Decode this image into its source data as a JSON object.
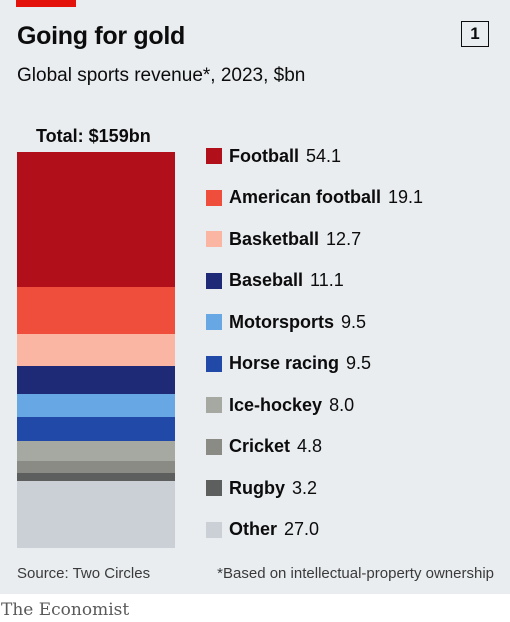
{
  "header": {
    "title": "Going for gold",
    "subtitle": "Global sports revenue*, 2023, $bn",
    "badge": "1"
  },
  "footer": {
    "source": "Source: Two Circles",
    "footnote": "*Based on intellectual-property ownership",
    "brand": "The Economist"
  },
  "colors": {
    "accent": "#e3120b",
    "panel": "#e9edf0"
  },
  "chart_data": {
    "type": "bar",
    "orientation": "stacked-vertical",
    "title": "Going for gold",
    "subtitle": "Global sports revenue*, 2023, $bn",
    "total_label": "Total: $159bn",
    "total": 159,
    "legend_position": "right",
    "grid": false,
    "series": [
      {
        "name": "Football",
        "value": 54.1,
        "label": "54.1",
        "color": "#b1101a"
      },
      {
        "name": "American football",
        "value": 19.1,
        "label": "19.1",
        "color": "#f04e3d"
      },
      {
        "name": "Basketball",
        "value": 12.7,
        "label": "12.7",
        "color": "#fbb5a3"
      },
      {
        "name": "Baseball",
        "value": 11.1,
        "label": "11.1",
        "color": "#1f2a77"
      },
      {
        "name": "Motorsports",
        "value": 9.5,
        "label": "9.5",
        "color": "#67a7e3"
      },
      {
        "name": "Horse racing",
        "value": 9.5,
        "label": "9.5",
        "color": "#2049a8"
      },
      {
        "name": "Ice-hockey",
        "value": 8.0,
        "label": "8.0",
        "color": "#a6a9a1"
      },
      {
        "name": "Cricket",
        "value": 4.8,
        "label": "4.8",
        "color": "#8a8b85"
      },
      {
        "name": "Rugby",
        "value": 3.2,
        "label": "3.2",
        "color": "#5d5f5e"
      },
      {
        "name": "Other",
        "value": 27.0,
        "label": "27.0",
        "color": "#cbd0d6"
      }
    ]
  }
}
